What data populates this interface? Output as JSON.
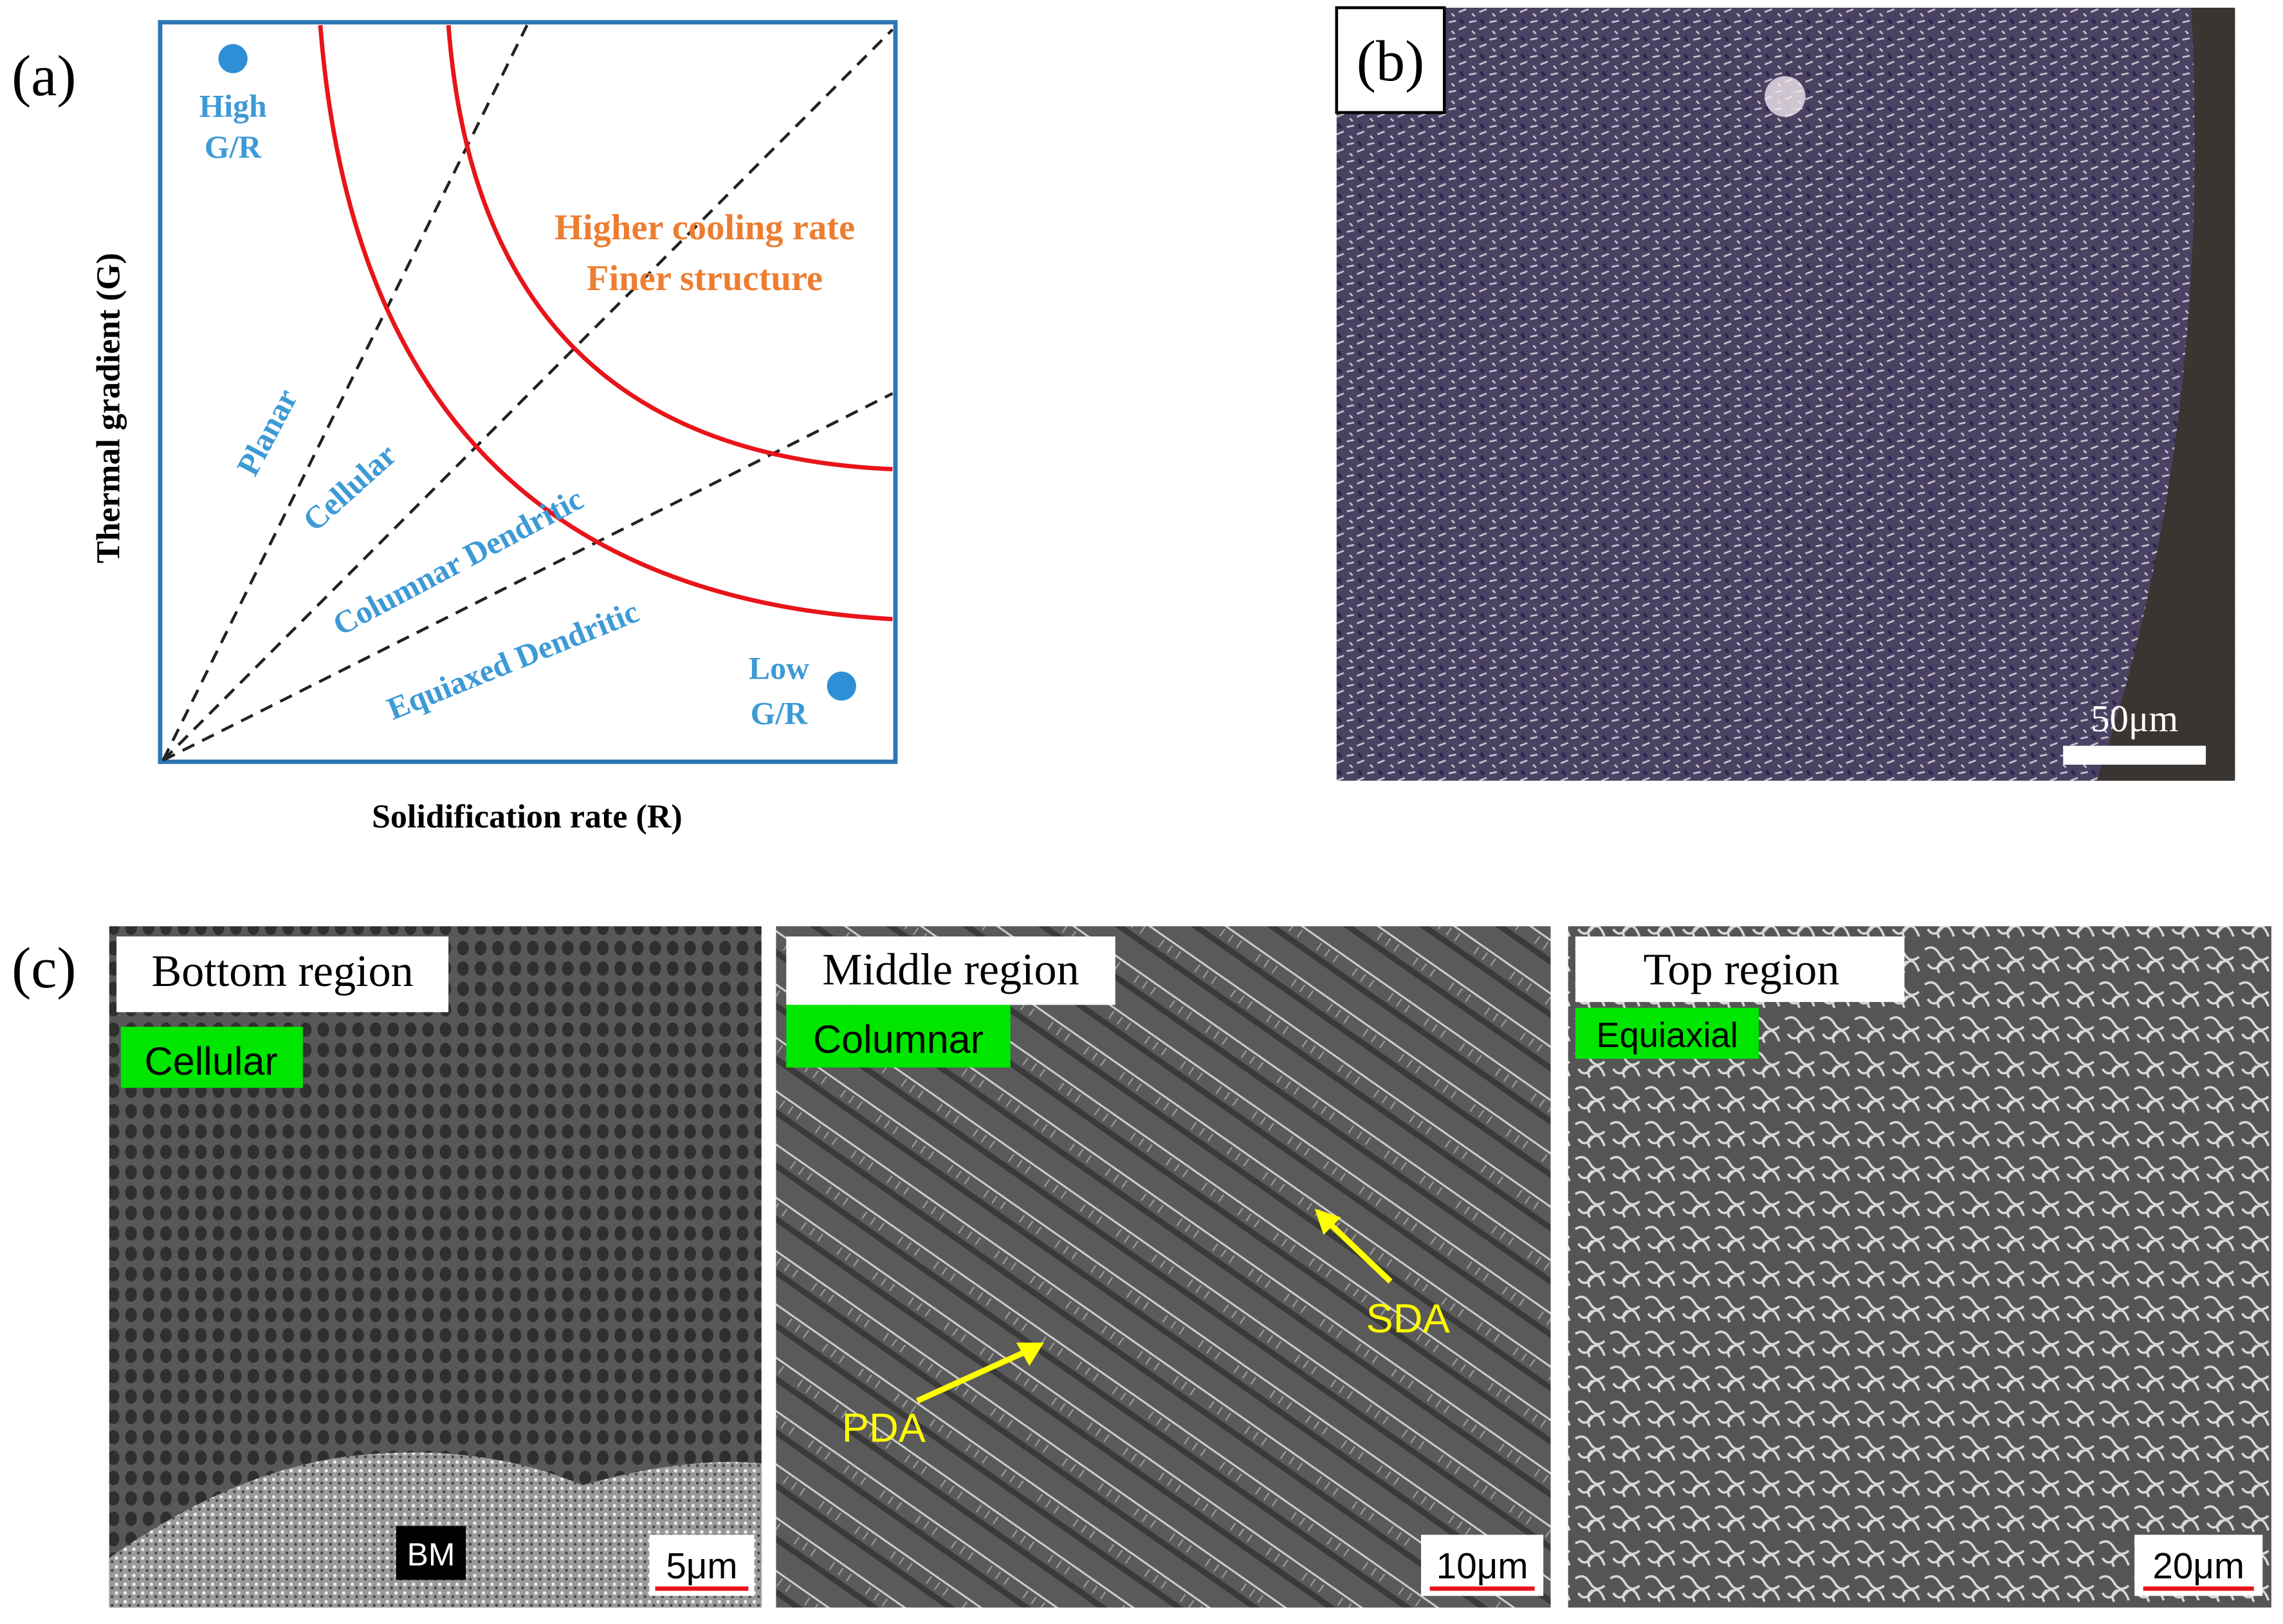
{
  "panel_a": {
    "label": "(a)",
    "y_axis_label": "Thermal gradient (G)",
    "x_axis_label": "Solidification rate (R)",
    "high_marker": [
      "High",
      "G/R"
    ],
    "low_marker": [
      "Low",
      "G/R"
    ],
    "cooling_note": [
      "Higher cooling rate",
      "Finer structure"
    ],
    "regions": [
      "Planar",
      "Cellular",
      "Columnar Dendritic",
      "Equiaxed Dendritic"
    ]
  },
  "panel_b": {
    "label": "(b)",
    "scale_bar": "50μm"
  },
  "panel_c": {
    "label": "(c)",
    "images": [
      {
        "region": "Bottom region",
        "structure": "Cellular",
        "scale_bar": "5μm",
        "annotations": [
          "BM"
        ]
      },
      {
        "region": "Middle region",
        "structure": "Columnar",
        "scale_bar": "10μm",
        "annotations": [
          "PDA",
          "SDA"
        ]
      },
      {
        "region": "Top region",
        "structure": "Equiaxial",
        "scale_bar": "20μm",
        "annotations": []
      }
    ]
  }
}
